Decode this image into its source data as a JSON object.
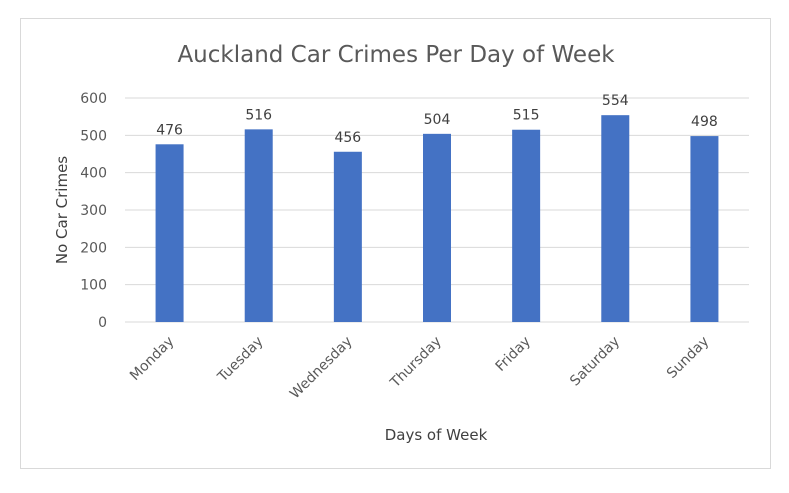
{
  "chart_data": {
    "type": "bar",
    "title": "Auckland Car Crimes Per Day of Week",
    "xlabel": "Days of Week",
    "ylabel": "No Car Crimes",
    "categories": [
      "Monday",
      "Tuesday",
      "Wednesday",
      "Thursday",
      "Friday",
      "Saturday",
      "Sunday"
    ],
    "values": [
      476,
      516,
      456,
      504,
      515,
      554,
      498
    ],
    "ylim": [
      0,
      600
    ],
    "yticks": [
      "0",
      "100",
      "200",
      "300",
      "400",
      "500",
      "600"
    ],
    "grid": true,
    "legend": "none",
    "bar_color": "#4472C4"
  }
}
